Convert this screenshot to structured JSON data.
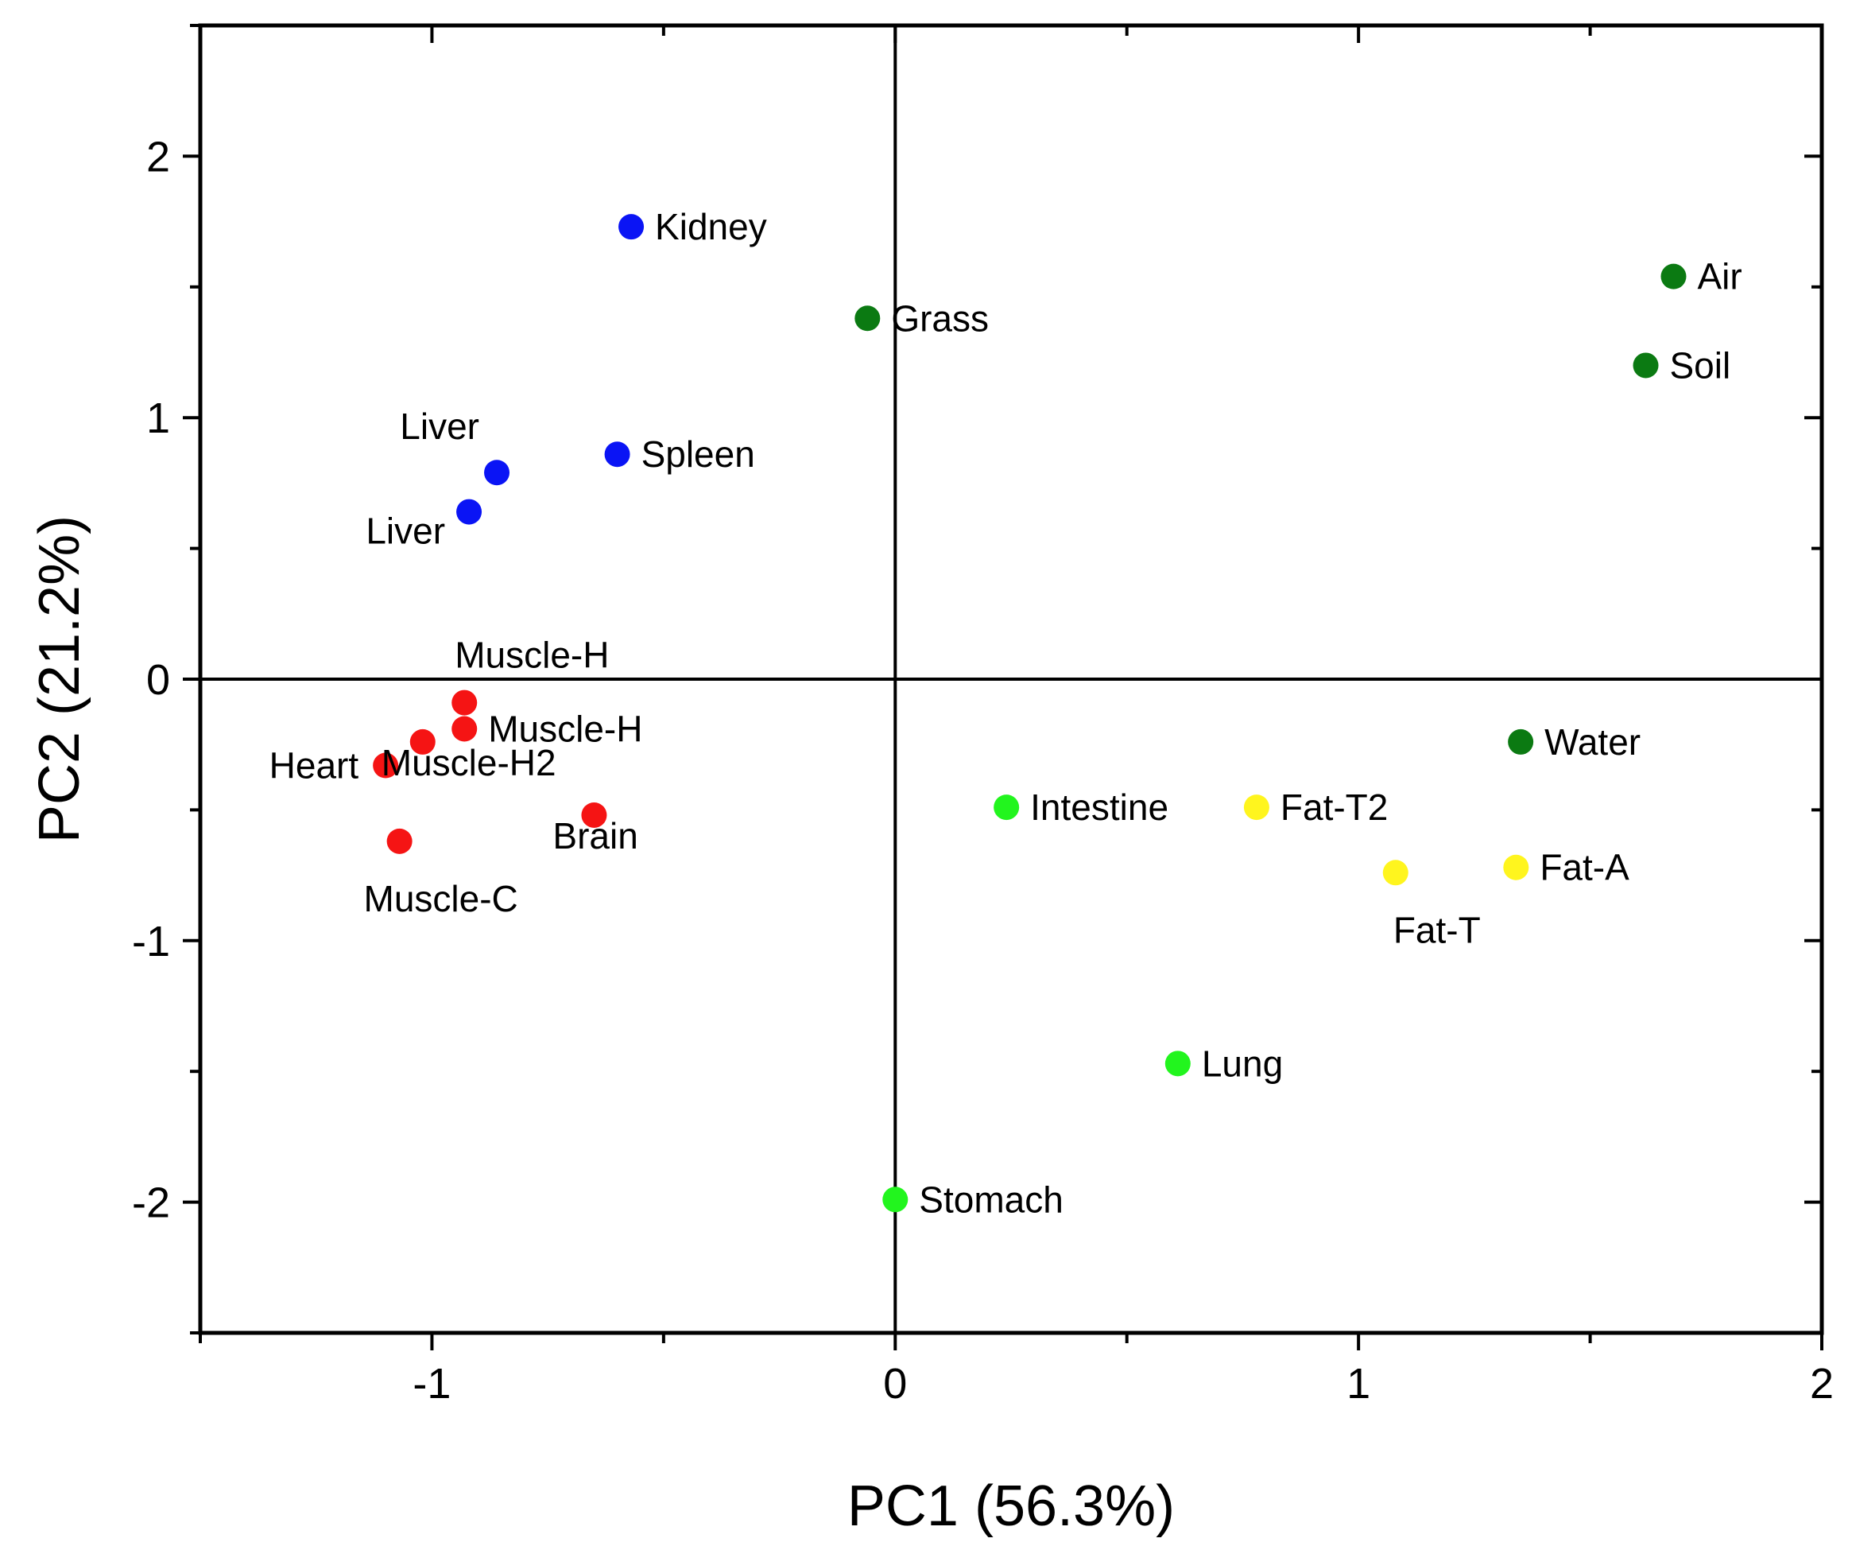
{
  "chart_data": {
    "type": "scatter",
    "title": "",
    "xlabel": "PC1 (56.3%)",
    "ylabel": "PC2 (21.2%)",
    "xlim": [
      -1.5,
      2.0
    ],
    "ylim": [
      -2.5,
      2.5
    ],
    "x_ticks": [
      {
        "value": -1,
        "label": "-1"
      },
      {
        "value": 0,
        "label": "0"
      },
      {
        "value": 1,
        "label": "1"
      },
      {
        "value": 2,
        "label": "2"
      }
    ],
    "y_ticks": [
      {
        "value": 2,
        "label": "2"
      },
      {
        "value": 1,
        "label": "1"
      },
      {
        "value": 0,
        "label": "0"
      },
      {
        "value": -1,
        "label": "-1"
      },
      {
        "value": -2,
        "label": "-2"
      }
    ],
    "reference_lines": {
      "x": 0,
      "y": 0
    },
    "grid": false,
    "colors": {
      "blue": "#0a14f5",
      "dark_green": "#0b7a12",
      "red": "#f51414",
      "light_green": "#22f51e",
      "yellow": "#fff51e"
    },
    "points": [
      {
        "label": "Kidney",
        "x": -0.57,
        "y": 1.73,
        "color": "blue",
        "label_pos": "right"
      },
      {
        "label": "Spleen",
        "x": -0.6,
        "y": 0.86,
        "color": "blue",
        "label_pos": "right"
      },
      {
        "label": "Liver",
        "x": -0.86,
        "y": 0.79,
        "color": "blue",
        "label_pos": "above-left"
      },
      {
        "label": "Liver",
        "x": -0.92,
        "y": 0.64,
        "color": "blue",
        "label_pos": "below-left"
      },
      {
        "label": "Grass",
        "x": -0.06,
        "y": 1.38,
        "color": "dark_green",
        "label_pos": "right"
      },
      {
        "label": "Air",
        "x": 1.68,
        "y": 1.54,
        "color": "dark_green",
        "label_pos": "right"
      },
      {
        "label": "Soil",
        "x": 1.62,
        "y": 1.2,
        "color": "dark_green",
        "label_pos": "right"
      },
      {
        "label": "Water",
        "x": 1.35,
        "y": -0.24,
        "color": "dark_green",
        "label_pos": "right"
      },
      {
        "label": "Muscle-H",
        "x": -0.93,
        "y": -0.09,
        "color": "red",
        "label_pos": "above-right"
      },
      {
        "label": "Muscle-H",
        "x": -0.93,
        "y": -0.19,
        "color": "red",
        "label_pos": "right"
      },
      {
        "label": "Muscle-H2",
        "x": -1.02,
        "y": -0.24,
        "color": "red",
        "label_pos": "below-right"
      },
      {
        "label": "Heart",
        "x": -1.1,
        "y": -0.33,
        "color": "red",
        "label_pos": "left"
      },
      {
        "label": "Brain",
        "x": -0.65,
        "y": -0.52,
        "color": "red",
        "label_pos": "below-right"
      },
      {
        "label": "Muscle-C",
        "x": -1.07,
        "y": -0.62,
        "color": "red",
        "label_pos": "below"
      },
      {
        "label": "Intestine",
        "x": 0.24,
        "y": -0.49,
        "color": "light_green",
        "label_pos": "right"
      },
      {
        "label": "Lung",
        "x": 0.61,
        "y": -1.47,
        "color": "light_green",
        "label_pos": "right"
      },
      {
        "label": "Stomach",
        "x": 0.0,
        "y": -1.99,
        "color": "light_green",
        "label_pos": "right"
      },
      {
        "label": "Fat-T2",
        "x": 0.78,
        "y": -0.49,
        "color": "yellow",
        "label_pos": "right"
      },
      {
        "label": "Fat-A",
        "x": 1.34,
        "y": -0.72,
        "color": "yellow",
        "label_pos": "right"
      },
      {
        "label": "Fat-T",
        "x": 1.08,
        "y": -0.74,
        "color": "yellow",
        "label_pos": "below"
      }
    ]
  }
}
